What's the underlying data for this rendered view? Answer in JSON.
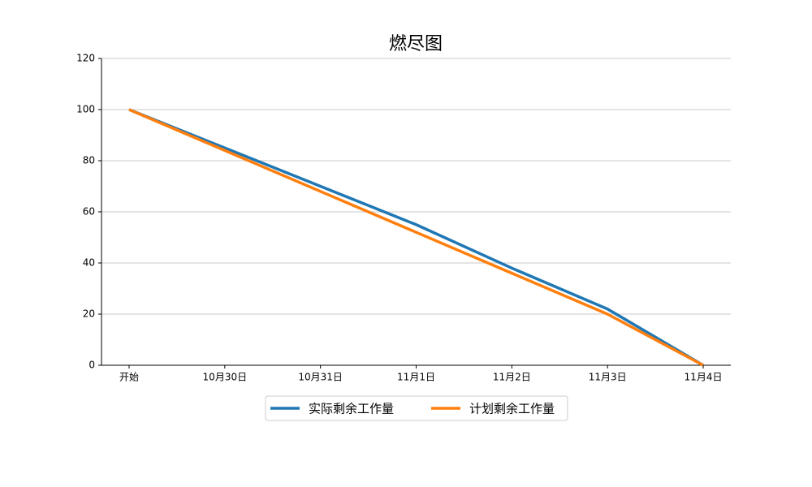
{
  "chart_data": {
    "type": "line",
    "title": "燃尽图",
    "categories": [
      "开始",
      "10月30日",
      "10月31日",
      "11月1日",
      "11月2日",
      "11月3日",
      "11月4日"
    ],
    "series": [
      {
        "name": "实际剩余工作量",
        "color": "#1f77b4",
        "values": [
          100,
          85,
          70,
          55,
          38,
          22,
          0
        ]
      },
      {
        "name": "计划剩余工作量",
        "color": "#ff7f0e",
        "values": [
          100,
          84,
          68,
          52,
          36,
          20,
          0
        ]
      }
    ],
    "ylim": [
      0,
      120
    ],
    "yticks": [
      0,
      20,
      40,
      60,
      80,
      100,
      120
    ],
    "grid": "y",
    "legend": "bottom"
  }
}
